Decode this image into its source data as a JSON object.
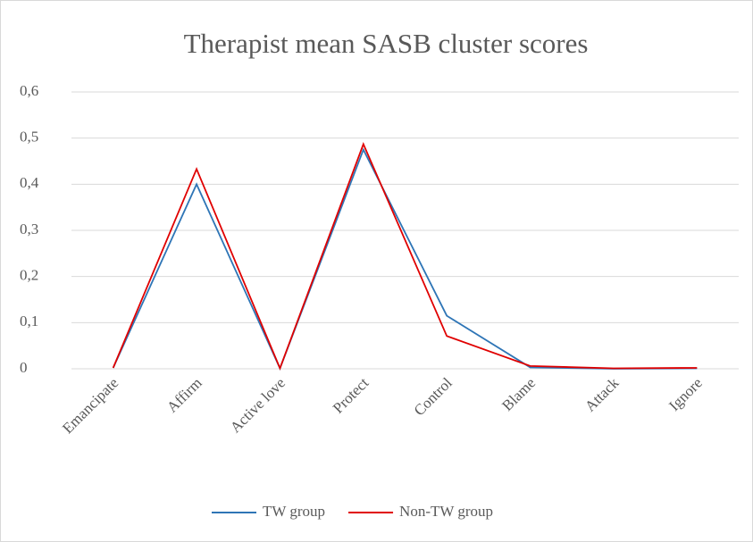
{
  "chart_data": {
    "type": "line",
    "title": "Therapist mean SASB cluster scores",
    "categories": [
      "Emancipate",
      "Affirm",
      "Active love",
      "Protect",
      "Control",
      "Blame",
      "Attack",
      "Ignore"
    ],
    "series": [
      {
        "name": "TW group",
        "color": "#2e75b6",
        "values": [
          0.002,
          0.4,
          0.001,
          0.475,
          0.115,
          0.003,
          0,
          0.001
        ]
      },
      {
        "name": "Non-TW group",
        "color": "#e00000",
        "values": [
          0.002,
          0.433,
          0.001,
          0.487,
          0.071,
          0.006,
          0.001,
          0.002
        ]
      }
    ],
    "ylim": [
      0,
      0.6
    ],
    "yticks": [
      0,
      {
        "value": 0.1,
        "label": "0,1"
      },
      {
        "value": 0.2,
        "label": "0,2"
      },
      {
        "value": 0.3,
        "label": "0,3"
      },
      {
        "value": 0.4,
        "label": "0,4"
      },
      {
        "value": 0.5,
        "label": "0,5"
      },
      {
        "value": 0.6,
        "label": "0,6"
      }
    ],
    "grid": true,
    "legend": "bottom"
  }
}
